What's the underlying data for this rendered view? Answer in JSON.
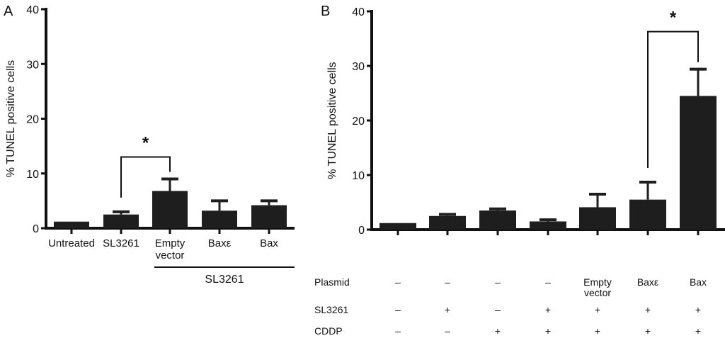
{
  "chart_data": [
    {
      "type": "bar",
      "panel_label": "A",
      "ylabel": "% TUNEL positive cells",
      "ylim": [
        0,
        40
      ],
      "yticks": [
        "0",
        "10",
        "20",
        "30",
        "40"
      ],
      "categories": [
        "Untreated",
        "SL3261",
        "Empty vector",
        "Baxε",
        "Bax"
      ],
      "values": [
        1.2,
        2.5,
        6.8,
        3.2,
        4.2
      ],
      "error_upper": [
        1.2,
        3.0,
        9.0,
        5.0,
        5.0
      ],
      "group_label": "SL3261",
      "group_members": [
        "Empty vector",
        "Baxε",
        "Bax"
      ],
      "significance": {
        "between": [
          "SL3261",
          "Empty vector"
        ],
        "mark": "*"
      },
      "bar_color": "#1e1e1e"
    },
    {
      "type": "bar",
      "panel_label": "B",
      "ylabel": "% TUNEL positive cells",
      "ylim": [
        0,
        40
      ],
      "yticks": [
        "0",
        "10",
        "20",
        "30",
        "40"
      ],
      "values": [
        1.2,
        2.5,
        3.5,
        1.5,
        4.1,
        5.5,
        24.5
      ],
      "error_upper": [
        1.2,
        2.8,
        3.8,
        1.8,
        6.5,
        8.7,
        29.4
      ],
      "significance": {
        "between": [
          5,
          6
        ],
        "mark": "*"
      },
      "bar_color": "#1e1e1e",
      "condition_table": [
        {
          "label": "Plasmid",
          "values": [
            "–",
            "–",
            "–",
            "–",
            "Empty vector",
            "Baxε",
            "Bax"
          ]
        },
        {
          "label": "SL3261",
          "values": [
            "–",
            "+",
            "–",
            "+",
            "+",
            "+",
            "+"
          ]
        },
        {
          "label": "CDDP",
          "values": [
            "–",
            "–",
            "+",
            "+",
            "+",
            "+",
            "+"
          ]
        }
      ]
    }
  ]
}
